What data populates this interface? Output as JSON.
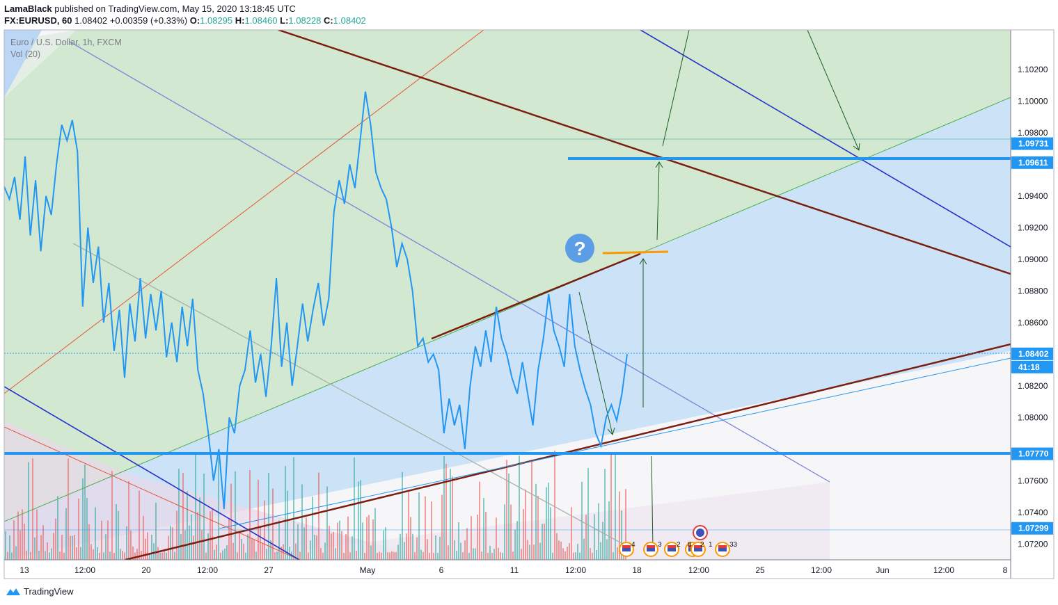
{
  "header": {
    "publisher": "LamaBlack",
    "published_text": "published on TradingView.com, May 15, 2020 13:18:45 UTC",
    "symbol": "FX:EURUSD, 60",
    "last": "1.08402",
    "change": "+0.00359 (+0.33%)",
    "o_label": "O:",
    "o_val": "1.08295",
    "h_label": "H:",
    "h_val": "1.08460",
    "l_label": "L:",
    "l_val": "1.08228",
    "c_label": "C:",
    "c_val": "1.08402"
  },
  "legend": {
    "title": "Euro / U.S. Dollar, 1h, FXCM",
    "indicator": "Vol (20)"
  },
  "brand": {
    "name": "TradingView"
  },
  "colors": {
    "price": "#2196f3",
    "channel_dark": "#7b1e10",
    "blue_line": "#2233cc",
    "level": "#2196f3",
    "marker": "#ff9800",
    "vol_up": "#26a69a",
    "vol_down": "#ef5350",
    "green_zone": "#d8ecd6",
    "blue_zone": "#cce3f7"
  },
  "chart_data": {
    "type": "line",
    "symbol": "EURUSD",
    "timeframe": "1h",
    "ylim": [
      1.071,
      1.1045
    ],
    "y_ticks": [
      "1.07200",
      "1.07400",
      "1.07600",
      "1.08000",
      "1.08200",
      "1.08600",
      "1.08800",
      "1.09000",
      "1.09200",
      "1.09400",
      "1.09800",
      "1.10000",
      "1.10200"
    ],
    "x_ticks": [
      "13",
      "12:00",
      "20",
      "12:00",
      "27",
      "May",
      "6",
      "11",
      "12:00",
      "18",
      "12:00",
      "25",
      "12:00",
      "Jun",
      "12:00",
      "8"
    ],
    "price_labels": [
      {
        "text": "1.09731",
        "value": 1.09731,
        "style": "line"
      },
      {
        "text": "1.09611",
        "value": 1.09611,
        "style": "level"
      },
      {
        "text": "1.08402",
        "value": 1.08402,
        "style": "last"
      },
      {
        "text": "41:18",
        "value": 1.083,
        "style": "countdown"
      },
      {
        "text": "1.07770",
        "value": 1.0777,
        "style": "level"
      },
      {
        "text": "1.07299",
        "value": 1.07299,
        "style": "line"
      }
    ],
    "price_series": [
      [
        0,
        1.0946
      ],
      [
        1,
        1.0938
      ],
      [
        2,
        1.0952
      ],
      [
        3,
        1.0925
      ],
      [
        4,
        1.0965
      ],
      [
        5,
        1.0915
      ],
      [
        6,
        1.095
      ],
      [
        7,
        1.0905
      ],
      [
        8,
        1.094
      ],
      [
        9,
        1.0928
      ],
      [
        10,
        1.096
      ],
      [
        11,
        1.0985
      ],
      [
        12,
        1.0975
      ],
      [
        13,
        1.0988
      ],
      [
        14,
        1.0968
      ],
      [
        15,
        1.087
      ],
      [
        16,
        1.092
      ],
      [
        17,
        1.0885
      ],
      [
        18,
        1.0908
      ],
      [
        19,
        1.086
      ],
      [
        20,
        1.0885
      ],
      [
        21,
        1.0842
      ],
      [
        22,
        1.0868
      ],
      [
        23,
        1.0825
      ],
      [
        24,
        1.0872
      ],
      [
        25,
        1.0848
      ],
      [
        26,
        1.0888
      ],
      [
        27,
        1.085
      ],
      [
        28,
        1.0878
      ],
      [
        29,
        1.0855
      ],
      [
        30,
        1.088
      ],
      [
        31,
        1.0838
      ],
      [
        32,
        1.086
      ],
      [
        33,
        1.0835
      ],
      [
        34,
        1.087
      ],
      [
        35,
        1.0845
      ],
      [
        36,
        1.0875
      ],
      [
        37,
        1.083
      ],
      [
        38,
        1.0815
      ],
      [
        39,
        1.079
      ],
      [
        40,
        1.076
      ],
      [
        41,
        1.078
      ],
      [
        42,
        1.0742
      ],
      [
        43,
        1.08
      ],
      [
        44,
        1.079
      ],
      [
        45,
        1.082
      ],
      [
        46,
        1.083
      ],
      [
        47,
        1.0855
      ],
      [
        48,
        1.0822
      ],
      [
        49,
        1.084
      ],
      [
        50,
        1.0813
      ],
      [
        51,
        1.0845
      ],
      [
        52,
        1.0888
      ],
      [
        53,
        1.0832
      ],
      [
        54,
        1.086
      ],
      [
        55,
        1.082
      ],
      [
        56,
        1.0845
      ],
      [
        57,
        1.0872
      ],
      [
        58,
        1.0848
      ],
      [
        59,
        1.0868
      ],
      [
        60,
        1.0885
      ],
      [
        61,
        1.0858
      ],
      [
        62,
        1.0875
      ],
      [
        63,
        1.093
      ],
      [
        64,
        1.095
      ],
      [
        65,
        1.0935
      ],
      [
        66,
        1.096
      ],
      [
        67,
        1.0945
      ],
      [
        68,
        1.0975
      ],
      [
        69,
        1.1006
      ],
      [
        70,
        1.0985
      ],
      [
        71,
        1.0955
      ],
      [
        72,
        1.0945
      ],
      [
        73,
        1.0938
      ],
      [
        74,
        1.092
      ],
      [
        75,
        1.0895
      ],
      [
        76,
        1.091
      ],
      [
        77,
        1.09
      ],
      [
        78,
        1.088
      ],
      [
        79,
        1.0845
      ],
      [
        80,
        1.085
      ],
      [
        81,
        1.0835
      ],
      [
        82,
        1.084
      ],
      [
        83,
        1.083
      ],
      [
        84,
        1.079
      ],
      [
        85,
        1.0812
      ],
      [
        86,
        1.0795
      ],
      [
        87,
        1.0808
      ],
      [
        88,
        1.078
      ],
      [
        89,
        1.082
      ],
      [
        90,
        1.0845
      ],
      [
        91,
        1.0832
      ],
      [
        92,
        1.0855
      ],
      [
        93,
        1.0835
      ],
      [
        94,
        1.087
      ],
      [
        95,
        1.085
      ],
      [
        96,
        1.084
      ],
      [
        97,
        1.0825
      ],
      [
        98,
        1.0815
      ],
      [
        99,
        1.0835
      ],
      [
        100,
        1.0815
      ],
      [
        101,
        1.0795
      ],
      [
        102,
        1.083
      ],
      [
        103,
        1.085
      ],
      [
        104,
        1.0878
      ],
      [
        105,
        1.0855
      ],
      [
        106,
        1.0845
      ],
      [
        107,
        1.0832
      ],
      [
        108,
        1.0878
      ],
      [
        109,
        1.0845
      ],
      [
        110,
        1.083
      ],
      [
        111,
        1.0818
      ],
      [
        112,
        1.0808
      ],
      [
        113,
        1.079
      ],
      [
        114,
        1.0782
      ],
      [
        115,
        1.08
      ],
      [
        116,
        1.0808
      ],
      [
        117,
        1.0798
      ],
      [
        118,
        1.0815
      ],
      [
        119,
        1.084
      ]
    ],
    "horizontal_levels": [
      1.09611,
      1.0777
    ],
    "notes_markers": [
      "4",
      "3",
      "2",
      "8",
      "2",
      "1",
      "33"
    ]
  }
}
